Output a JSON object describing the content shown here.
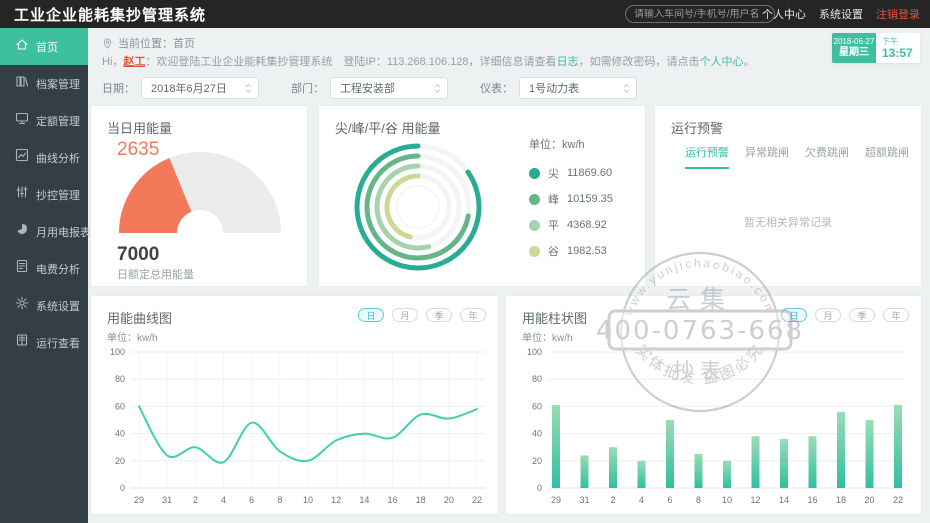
{
  "app": {
    "title": "工业企业能耗集抄管理系统"
  },
  "header": {
    "search_placeholder": "请输入车间号/手机号/用户名",
    "links": [
      {
        "label": "个人中心",
        "accent": false
      },
      {
        "label": "系统设置",
        "accent": false
      },
      {
        "label": "注销登录",
        "accent": true
      }
    ]
  },
  "sidebar": {
    "items": [
      {
        "label": "首页",
        "icon": "home",
        "active": true
      },
      {
        "label": "档案管理",
        "icon": "archive",
        "active": false
      },
      {
        "label": "定额管理",
        "icon": "monitor",
        "active": false
      },
      {
        "label": "曲线分析",
        "icon": "curve",
        "active": false
      },
      {
        "label": "抄控管理",
        "icon": "sliders",
        "active": false
      },
      {
        "label": "月用电报表",
        "icon": "pie",
        "active": false
      },
      {
        "label": "电费分析",
        "icon": "doc",
        "active": false
      },
      {
        "label": "系统设置",
        "icon": "gear",
        "active": false
      },
      {
        "label": "运行查看",
        "icon": "log",
        "active": false
      }
    ]
  },
  "breadcrumb": {
    "label": "当前位置：",
    "current": "首页"
  },
  "welcome": {
    "segments": [
      {
        "text": "Hi，",
        "type": "plain"
      },
      {
        "text": "赵工",
        "type": "user"
      },
      {
        "text": "：欢迎登陆工业企业能耗集抄管理系统",
        "type": "plain"
      },
      {
        "text": "　登陆IP：113.268.106.128，详细信息请查看",
        "type": "plain"
      },
      {
        "text": "日志",
        "type": "link"
      },
      {
        "text": "，如需修改密码，请点击",
        "type": "plain"
      },
      {
        "text": "个人中心",
        "type": "link"
      },
      {
        "text": "。",
        "type": "plain"
      }
    ]
  },
  "datetime": {
    "date": "2018-06-27",
    "weekday": "星期三",
    "period": "下午",
    "time": "13:57"
  },
  "filters": [
    {
      "label": "日期：",
      "value": "2018年6月27日"
    },
    {
      "label": "部门：",
      "value": "工程安装部"
    },
    {
      "label": "仪表：",
      "value": "1号动力表"
    }
  ],
  "cards": {
    "gauge": {
      "title": "当日用能量",
      "value": "2635",
      "total": "7000",
      "total_label": "日额定总用能量"
    },
    "rings": {
      "title": "尖/峰/平/谷 用能量",
      "unit_label": "单位：kw/h"
    },
    "alerts": {
      "title": "运行预警",
      "tabs": [
        "运行预警",
        "异常跳闸",
        "欠费跳闸",
        "超额跳闸"
      ],
      "active_tab": 0,
      "empty_text": "暂无相关异常记录"
    },
    "line": {
      "title": "用能曲线图",
      "unit_label": "单位：kw/h",
      "ranges": [
        "日",
        "月",
        "季",
        "年"
      ],
      "active_range": 0
    },
    "bar": {
      "title": "用能柱状图",
      "unit_label": "单位：kw/h",
      "ranges": [
        "日",
        "月",
        "季",
        "年"
      ],
      "active_range": 0
    }
  },
  "chart_data": [
    {
      "type": "gauge",
      "title": "当日用能量",
      "value": 2635,
      "max": 7000,
      "label": "日额定总用能量",
      "color": "#f4795a",
      "track_color": "#ebebeb"
    },
    {
      "type": "pie",
      "variant": "concentric_rings",
      "title": "尖/峰/平/谷 用能量",
      "unit": "kw/h",
      "categories": [
        "尖",
        "峰",
        "平",
        "谷"
      ],
      "values": [
        11869.6,
        10159.35,
        4368.92,
        1982.53
      ],
      "value_labels": [
        "11869.60",
        "10159.35",
        "4368.92",
        "1982.53"
      ],
      "colors": [
        "#29ab94",
        "#66b489",
        "#a6d3ad",
        "#cbd995"
      ],
      "track_color": "#f3f4f5",
      "sweep_deg": [
        305,
        260,
        195,
        165
      ],
      "legend_position": "right"
    },
    {
      "type": "line",
      "title": "用能曲线图",
      "unit": "kw/h",
      "x": [
        "29",
        "31",
        "2",
        "4",
        "6",
        "8",
        "10",
        "12",
        "14",
        "16",
        "18",
        "20",
        "22"
      ],
      "values": [
        60,
        24,
        30,
        19,
        48,
        27,
        20,
        35,
        40,
        37,
        54,
        51,
        58
      ],
      "ylim": [
        0,
        100
      ],
      "yticks": [
        0,
        20,
        40,
        60,
        80,
        100
      ],
      "color": "#3fd0ae",
      "smooth": true,
      "grid": true
    },
    {
      "type": "bar",
      "title": "用能柱状图",
      "unit": "kw/h",
      "x": [
        "29",
        "31",
        "2",
        "4",
        "6",
        "8",
        "10",
        "12",
        "14",
        "16",
        "18",
        "20",
        "22"
      ],
      "values": [
        61,
        24,
        30,
        20,
        50,
        25,
        20,
        38,
        36,
        38,
        56,
        50,
        61
      ],
      "ylim": [
        0,
        100
      ],
      "yticks": [
        0,
        20,
        40,
        60,
        80,
        100
      ],
      "bar_gradient": [
        "#9bdcb3",
        "#2fc0a0"
      ],
      "grid": true
    }
  ],
  "watermark": {
    "site": "www.yunjichaobiao.com",
    "brand_top": "云集",
    "phone": "400-0763-668",
    "brand_bottom": "抄表",
    "slogan": "实体批发 盗图必究"
  },
  "colors": {
    "accent_teal": "#3dbd9e",
    "accent_orange": "#e0543f",
    "header_bg": "#252525",
    "sidebar_bg": "#343e45"
  }
}
